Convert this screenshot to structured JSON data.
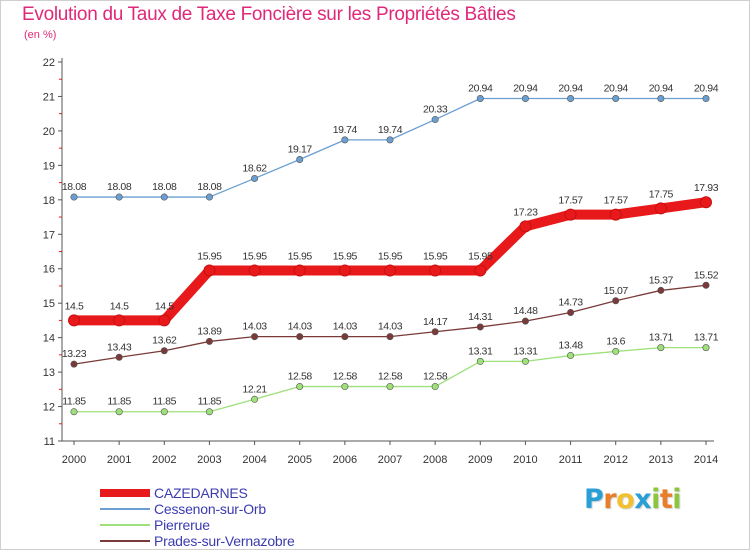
{
  "title": "Evolution du Taux de Taxe Foncière sur les Propriétés Bâties",
  "unit_label": "(en %)",
  "logo": {
    "letters": [
      "P",
      "r",
      "o",
      "x",
      "i",
      "t",
      "i"
    ],
    "colors": [
      "#2a9fd6",
      "#e87d2a",
      "#f2c02f",
      "#2a9fd6",
      "#8cc63f",
      "#e87d2a",
      "#8cc63f"
    ]
  },
  "chart_data": {
    "type": "line",
    "title": "Evolution du Taux de Taxe Foncière sur les Propriétés Bâties",
    "ylabel": "(en %)",
    "xlabel": "",
    "x": [
      "2000",
      "2001",
      "2002",
      "2003",
      "2004",
      "2005",
      "2006",
      "2007",
      "2008",
      "2009",
      "2010",
      "2011",
      "2012",
      "2013",
      "2014"
    ],
    "ylim": [
      11,
      22
    ],
    "yticks": [
      "11",
      "12",
      "13",
      "14",
      "15",
      "16",
      "17",
      "18",
      "19",
      "20",
      "21",
      "22"
    ],
    "grid": false,
    "legend_position": "bottom-left",
    "series": [
      {
        "name": "CAZEDARNES",
        "color": "#e8191a",
        "values": [
          14.5,
          14.5,
          14.5,
          15.95,
          15.95,
          15.95,
          15.95,
          15.95,
          15.95,
          15.95,
          17.23,
          17.57,
          17.57,
          17.75,
          17.93
        ],
        "labels": [
          "14.5",
          "14.5",
          "14.5",
          "15.95",
          "15.95",
          "15.95",
          "15.95",
          "15.95",
          "15.95",
          "15.95",
          "17.23",
          "17.57",
          "17.57",
          "17.75",
          "17.93"
        ]
      },
      {
        "name": "Cessenon-sur-Orb",
        "color": "#6b9fd1",
        "values": [
          18.08,
          18.08,
          18.08,
          18.08,
          18.62,
          19.17,
          19.74,
          19.74,
          20.33,
          20.94,
          20.94,
          20.94,
          20.94,
          20.94,
          20.94
        ],
        "labels": [
          "18.08",
          "18.08",
          "18.08",
          "18.08",
          "18.62",
          "19.17",
          "19.74",
          "19.74",
          "20.33",
          "20.94",
          "20.94",
          "20.94",
          "20.94",
          "20.94",
          "20.94"
        ]
      },
      {
        "name": "Pierrerue",
        "color": "#9ee07a",
        "values": [
          11.85,
          11.85,
          11.85,
          11.85,
          12.21,
          12.58,
          12.58,
          12.58,
          12.58,
          13.31,
          13.31,
          13.48,
          13.6,
          13.71,
          13.71
        ],
        "labels": [
          "11.85",
          "11.85",
          "11.85",
          "11.85",
          "12.21",
          "12.58",
          "12.58",
          "12.58",
          "12.58",
          "13.31",
          "13.31",
          "13.48",
          "13.6",
          "13.71",
          "13.71"
        ]
      },
      {
        "name": "Prades-sur-Vernazobre",
        "color": "#7a3a3a",
        "values": [
          13.23,
          13.43,
          13.62,
          13.89,
          14.03,
          14.03,
          14.03,
          14.03,
          14.17,
          14.31,
          14.48,
          14.73,
          15.07,
          15.37,
          15.52
        ],
        "labels": [
          "13.23",
          "13.43",
          "13.62",
          "13.89",
          "14.03",
          "14.03",
          "14.03",
          "14.03",
          "14.17",
          "14.31",
          "14.48",
          "14.73",
          "15.07",
          "15.37",
          "15.52"
        ]
      }
    ]
  }
}
